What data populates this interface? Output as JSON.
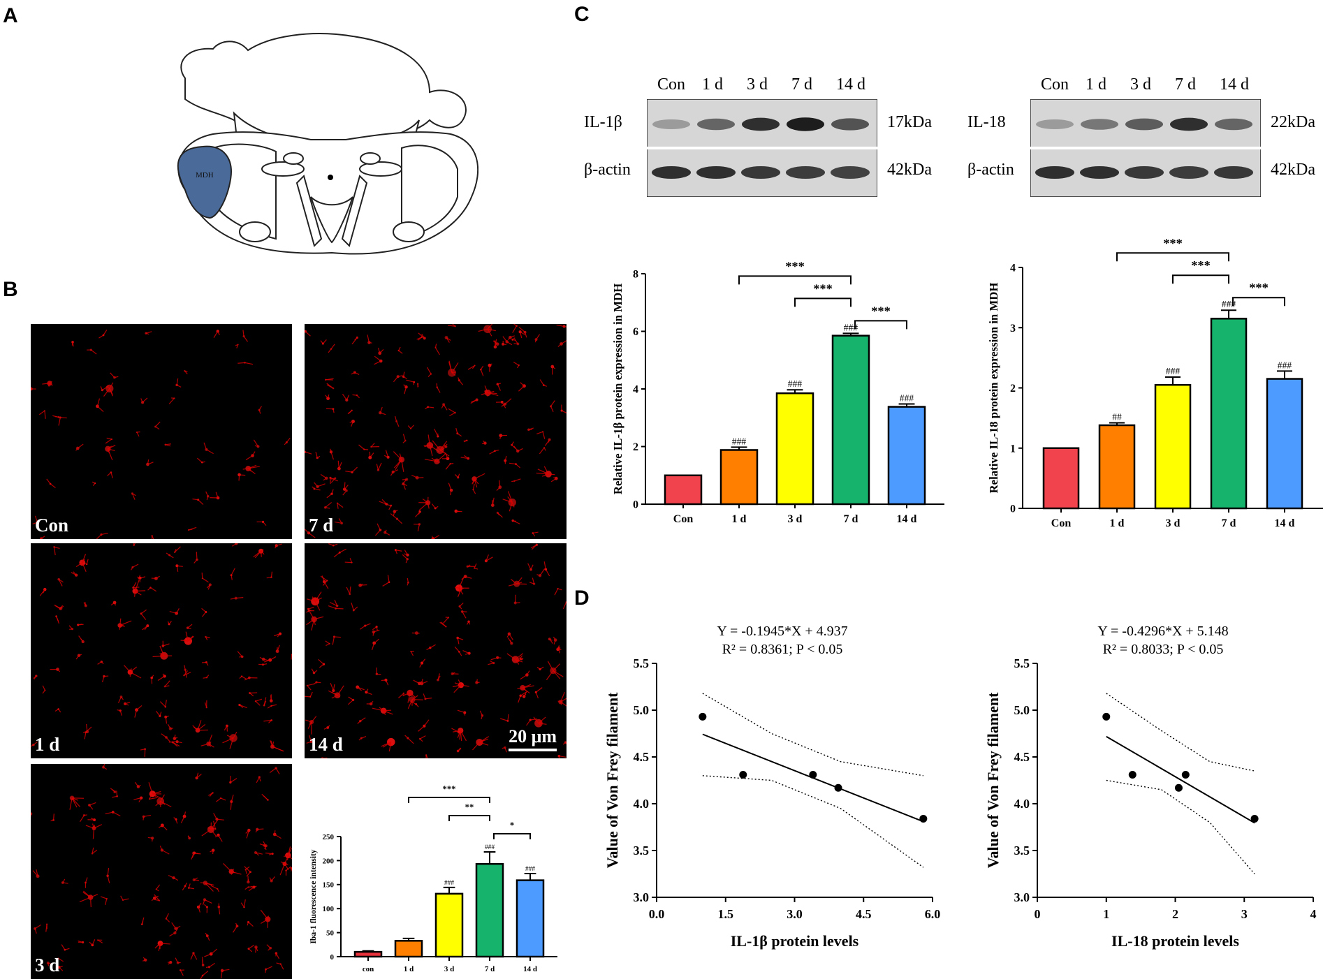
{
  "panels": {
    "A": "A",
    "B": "B",
    "C": "C",
    "D": "D"
  },
  "panel_a": {
    "region_label": "MDH",
    "region_color": "#4a6a9a"
  },
  "panel_b": {
    "images": [
      {
        "label": "Con",
        "density": 0.35
      },
      {
        "label": "7 d",
        "density": 1.0
      },
      {
        "label": "1 d",
        "density": 0.7
      },
      {
        "label": "14 d",
        "density": 0.85
      },
      {
        "label": "3 d",
        "density": 0.8
      }
    ],
    "scale_bar": "20 μm"
  },
  "western_blots": [
    {
      "lanes": [
        "Con",
        "1 d",
        "3 d",
        "7 d",
        "14 d"
      ],
      "target": "IL-1β",
      "target_kda": "17kDa",
      "control": "β-actin",
      "control_kda": "42kDa",
      "target_intensity": [
        0.25,
        0.55,
        0.85,
        0.95,
        0.65
      ],
      "control_intensity": [
        0.85,
        0.85,
        0.8,
        0.78,
        0.75
      ]
    },
    {
      "lanes": [
        "Con",
        "1 d",
        "3 d",
        "7 d",
        "14 d"
      ],
      "target": "IL-18",
      "target_kda": "22kDa",
      "control": "β-actin",
      "control_kda": "42kDa",
      "target_intensity": [
        0.25,
        0.45,
        0.6,
        0.85,
        0.55
      ],
      "control_intensity": [
        0.85,
        0.85,
        0.8,
        0.78,
        0.8
      ]
    }
  ],
  "chart_data": [
    {
      "type": "bar",
      "panel": "B",
      "categories": [
        "con",
        "1 d",
        "3 d",
        "7 d",
        "14 d"
      ],
      "values": [
        10,
        33,
        131,
        193,
        159
      ],
      "errors": [
        2,
        5,
        13,
        25,
        14
      ],
      "colors": [
        "#e8323c",
        "#ff8000",
        "#ffff00",
        "#15b36b",
        "#4d9bff"
      ],
      "ylabel": "Iba-1 fluorescence intensity",
      "ylim": [
        0,
        250
      ],
      "yticks": [
        0,
        50,
        100,
        150,
        200,
        250
      ],
      "bar_annotations": [
        "",
        "",
        "###",
        "###",
        "###"
      ],
      "brackets": [
        {
          "from": 1,
          "to": 3,
          "label": "***"
        },
        {
          "from": 2,
          "to": 3,
          "label": "**"
        },
        {
          "from": 3,
          "to": 4,
          "label": "*"
        }
      ]
    },
    {
      "type": "bar",
      "panel": "C",
      "categories": [
        "Con",
        "1 d",
        "3 d",
        "7 d",
        "14 d"
      ],
      "values": [
        1.0,
        1.88,
        3.85,
        5.85,
        3.38
      ],
      "errors": [
        0,
        0.1,
        0.12,
        0.08,
        0.1
      ],
      "colors": [
        "#f0434d",
        "#ff8000",
        "#ffff00",
        "#15b36b",
        "#4d9bff"
      ],
      "ylabel": "Relative IL-1β protein expression in MDH",
      "ylim": [
        0,
        8
      ],
      "yticks": [
        0,
        2,
        4,
        6,
        8
      ],
      "bar_annotations": [
        "",
        "###",
        "###",
        "###",
        "###"
      ],
      "brackets": [
        {
          "from": 1,
          "to": 3,
          "label": "***"
        },
        {
          "from": 2,
          "to": 3,
          "label": "***"
        },
        {
          "from": 3,
          "to": 4,
          "label": "***"
        }
      ]
    },
    {
      "type": "bar",
      "panel": "C",
      "categories": [
        "Con",
        "1 d",
        "3 d",
        "7 d",
        "14 d"
      ],
      "values": [
        1.0,
        1.38,
        2.05,
        3.15,
        2.15
      ],
      "errors": [
        0,
        0.04,
        0.13,
        0.14,
        0.13
      ],
      "colors": [
        "#f0434d",
        "#ff8000",
        "#ffff00",
        "#15b36b",
        "#4d9bff"
      ],
      "ylabel": "Relative IL-18 protein expression in MDH",
      "ylim": [
        0,
        4
      ],
      "yticks": [
        0,
        1,
        2,
        3,
        4
      ],
      "bar_annotations": [
        "",
        "##",
        "###",
        "###",
        "###"
      ],
      "brackets": [
        {
          "from": 1,
          "to": 3,
          "label": "***"
        },
        {
          "from": 2,
          "to": 3,
          "label": "***"
        },
        {
          "from": 3,
          "to": 4,
          "label": "***"
        }
      ]
    },
    {
      "type": "scatter",
      "panel": "D",
      "equation": "Y = -0.1945*X + 4.937",
      "stats": "R² = 0.8361; P < 0.05",
      "x": [
        1.0,
        1.88,
        3.4,
        3.95,
        5.8
      ],
      "y": [
        4.93,
        4.31,
        4.31,
        4.17,
        3.84
      ],
      "slope": -0.1945,
      "intercept": 4.937,
      "ci_upper": [
        [
          1.0,
          5.18
        ],
        [
          2.5,
          4.75
        ],
        [
          4.0,
          4.45
        ],
        [
          5.8,
          4.3
        ]
      ],
      "ci_lower": [
        [
          1.0,
          4.3
        ],
        [
          2.5,
          4.25
        ],
        [
          4.0,
          3.95
        ],
        [
          5.8,
          3.32
        ]
      ],
      "xlabel": "IL-1β protein levels",
      "ylabel": "Value of Von Frey filament",
      "xlim": [
        0,
        6
      ],
      "ylim": [
        3.0,
        5.5
      ],
      "xticks": [
        "0.0",
        "1.5",
        "3.0",
        "4.5",
        "6.0"
      ],
      "xtick_values": [
        0,
        1.5,
        3.0,
        4.5,
        6.0
      ],
      "yticks": [
        "3.0",
        "3.5",
        "4.0",
        "4.5",
        "5.0",
        "5.5"
      ],
      "ytick_values": [
        3.0,
        3.5,
        4.0,
        4.5,
        5.0,
        5.5
      ]
    },
    {
      "type": "scatter",
      "panel": "D",
      "equation": "Y = -0.4296*X + 5.148",
      "stats": "R² = 0.8033; P < 0.05",
      "x": [
        1.0,
        1.38,
        2.05,
        2.15,
        3.15
      ],
      "y": [
        4.93,
        4.31,
        4.17,
        4.31,
        3.84
      ],
      "slope": -0.4296,
      "intercept": 5.148,
      "ci_upper": [
        [
          1.0,
          5.18
        ],
        [
          1.8,
          4.78
        ],
        [
          2.5,
          4.45
        ],
        [
          3.15,
          4.35
        ]
      ],
      "ci_lower": [
        [
          1.0,
          4.25
        ],
        [
          1.8,
          4.15
        ],
        [
          2.5,
          3.8
        ],
        [
          3.15,
          3.25
        ]
      ],
      "xlabel": "IL-18 protein levels",
      "ylabel": "Value of Von Frey filament",
      "xlim": [
        0,
        4
      ],
      "ylim": [
        3.0,
        5.5
      ],
      "xticks": [
        "0",
        "1",
        "2",
        "3",
        "4"
      ],
      "xtick_values": [
        0,
        1,
        2,
        3,
        4
      ],
      "yticks": [
        "3.0",
        "3.5",
        "4.0",
        "4.5",
        "5.0",
        "5.5"
      ],
      "ytick_values": [
        3.0,
        3.5,
        4.0,
        4.5,
        5.0,
        5.5
      ]
    }
  ]
}
